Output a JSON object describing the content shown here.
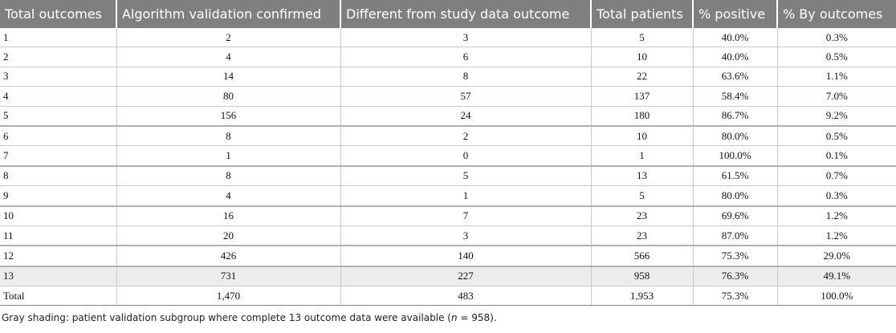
{
  "table": {
    "header": [
      "Total outcomes",
      "Algorithm validation confirmed",
      "Different from study data outcome",
      "Total patients",
      "% positive",
      "% By outcomes"
    ],
    "rows": [
      [
        "1",
        "2",
        "3",
        "5",
        "40.0%",
        "0.3%"
      ],
      [
        "2",
        "4",
        "6",
        "10",
        "40.0%",
        "0.5%"
      ],
      [
        "3",
        "14",
        "8",
        "22",
        "63.6%",
        "1.1%"
      ],
      [
        "4",
        "80",
        "57",
        "137",
        "58.4%",
        "7.0%"
      ],
      [
        "5",
        "156",
        "24",
        "180",
        "86.7%",
        "9.2%"
      ],
      [
        "6",
        "8",
        "2",
        "10",
        "80.0%",
        "0.5%"
      ],
      [
        "7",
        "1",
        "0",
        "1",
        "100.0%",
        "0.1%"
      ],
      [
        "8",
        "8",
        "5",
        "13",
        "61.5%",
        "0.7%"
      ],
      [
        "9",
        "4",
        "1",
        "5",
        "80.0%",
        "0.3%"
      ],
      [
        "10",
        "16",
        "7",
        "23",
        "69.6%",
        "1.2%"
      ],
      [
        "11",
        "20",
        "3",
        "23",
        "87.0%",
        "1.2%"
      ],
      [
        "12",
        "426",
        "140",
        "566",
        "75.3%",
        "29.0%"
      ],
      [
        "13",
        "731",
        "227",
        "958",
        "76.3%",
        "49.1%"
      ],
      [
        "Total",
        "1,470",
        "483",
        "1,953",
        "75.3%",
        "100.0%"
      ]
    ]
  },
  "footnote": {
    "before": "Gray shading: patient validation subgroup where complete 13 outcome data were available (",
    "italic": "n",
    "after": " = 958)."
  }
}
